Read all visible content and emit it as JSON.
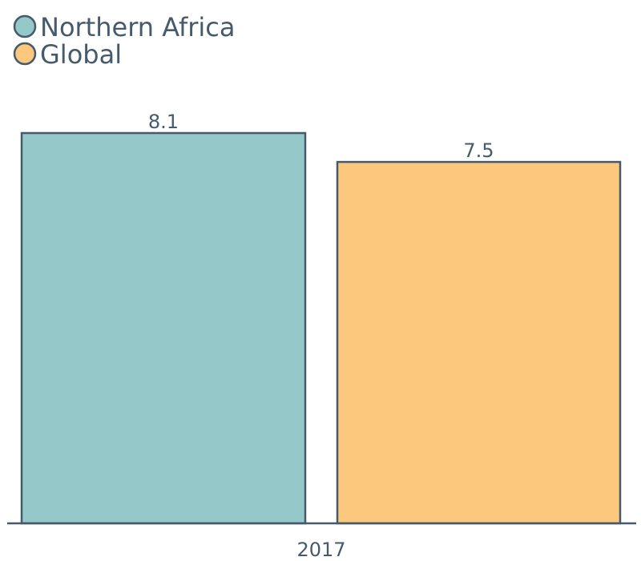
{
  "chart_data": {
    "type": "bar",
    "categories": [
      "2017"
    ],
    "series": [
      {
        "name": "Northern Africa",
        "values": [
          8.1
        ],
        "color": "#95c8c8"
      },
      {
        "name": "Global",
        "values": [
          7.5
        ],
        "color": "#fbc87d"
      }
    ],
    "data_labels": [
      "8.1",
      "7.5"
    ],
    "ylim": [
      0,
      8.1
    ],
    "legend_position": "top-left",
    "grid": false,
    "stroke_color": "#455a6b"
  }
}
